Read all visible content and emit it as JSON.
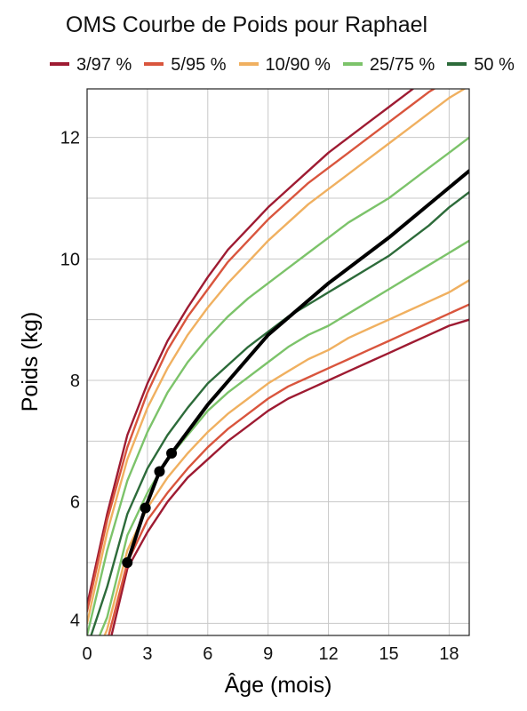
{
  "chart_data": {
    "type": "line",
    "title": "OMS Courbe de Poids pour Raphael",
    "xlabel": "Âge (mois)",
    "ylabel": "Poids (kg)",
    "xlim": [
      0,
      19
    ],
    "ylim": [
      3.8,
      12.8
    ],
    "x_ticks": [
      "0",
      "3",
      "6",
      "9",
      "12",
      "15",
      "18"
    ],
    "y_ticks": [
      "4",
      "6",
      "8",
      "10",
      "12"
    ],
    "grid": true,
    "legend_position": "top",
    "legend": [
      {
        "label": "3/97 %",
        "color": "#9e1b32"
      },
      {
        "label": "5/95 %",
        "color": "#d9553d"
      },
      {
        "label": "10/90 %",
        "color": "#f0b060"
      },
      {
        "label": "25/75 %",
        "color": "#7cc36a"
      },
      {
        "label": "50 %",
        "color": "#2d6b3a"
      }
    ],
    "percentile_x": [
      0,
      1,
      2,
      3,
      4,
      5,
      6,
      7,
      8,
      9,
      10,
      11,
      12,
      13,
      14,
      15,
      16,
      17,
      18,
      19
    ],
    "series": [
      {
        "name": "3/97 %",
        "color": "#9e1b32",
        "values": [
          2.9,
          3.5,
          4.9,
          5.5,
          6.0,
          6.4,
          6.7,
          7.0,
          7.25,
          7.5,
          7.7,
          7.85,
          8.0,
          8.15,
          8.3,
          8.45,
          8.6,
          8.75,
          8.9,
          9.0
        ]
      },
      {
        "name": "3/97 %",
        "color": "#9e1b32",
        "values": [
          4.3,
          5.8,
          7.1,
          7.95,
          8.65,
          9.2,
          9.7,
          10.15,
          10.5,
          10.85,
          11.15,
          11.45,
          11.75,
          12.0,
          12.25,
          12.5,
          12.75,
          13.0,
          13.2,
          13.4
        ]
      },
      {
        "name": "5/95 %",
        "color": "#d9553d",
        "values": [
          3.0,
          3.7,
          5.0,
          5.7,
          6.15,
          6.55,
          6.9,
          7.2,
          7.45,
          7.7,
          7.9,
          8.05,
          8.2,
          8.35,
          8.5,
          8.65,
          8.8,
          8.95,
          9.1,
          9.25
        ]
      },
      {
        "name": "5/95 %",
        "color": "#d9553d",
        "values": [
          4.2,
          5.7,
          6.9,
          7.8,
          8.5,
          9.05,
          9.5,
          9.95,
          10.3,
          10.65,
          10.95,
          11.25,
          11.5,
          11.75,
          12.0,
          12.25,
          12.5,
          12.75,
          12.95,
          13.15
        ]
      },
      {
        "name": "10/90 %",
        "color": "#f0b060",
        "values": [
          3.1,
          3.9,
          5.2,
          5.9,
          6.4,
          6.8,
          7.15,
          7.45,
          7.7,
          7.95,
          8.15,
          8.35,
          8.5,
          8.7,
          8.85,
          9.0,
          9.15,
          9.3,
          9.45,
          9.65
        ]
      },
      {
        "name": "10/90 %",
        "color": "#f0b060",
        "values": [
          4.0,
          5.5,
          6.7,
          7.55,
          8.2,
          8.75,
          9.2,
          9.6,
          9.95,
          10.3,
          10.6,
          10.9,
          11.15,
          11.4,
          11.65,
          11.9,
          12.15,
          12.4,
          12.65,
          12.85
        ]
      },
      {
        "name": "25/75 %",
        "color": "#7cc36a",
        "values": [
          3.3,
          4.1,
          5.45,
          6.15,
          6.7,
          7.1,
          7.5,
          7.8,
          8.05,
          8.3,
          8.55,
          8.75,
          8.9,
          9.1,
          9.3,
          9.5,
          9.7,
          9.9,
          10.1,
          10.3
        ]
      },
      {
        "name": "25/75 %",
        "color": "#7cc36a",
        "values": [
          3.8,
          5.2,
          6.35,
          7.15,
          7.8,
          8.3,
          8.7,
          9.05,
          9.35,
          9.6,
          9.85,
          10.1,
          10.35,
          10.6,
          10.8,
          11.0,
          11.25,
          11.5,
          11.75,
          12.0
        ]
      },
      {
        "name": "50 %",
        "color": "#2d6b3a",
        "values": [
          3.6,
          4.6,
          5.8,
          6.55,
          7.1,
          7.55,
          7.95,
          8.25,
          8.55,
          8.8,
          9.05,
          9.25,
          9.45,
          9.65,
          9.85,
          10.05,
          10.3,
          10.55,
          10.85,
          11.1
        ]
      },
      {
        "name": "Raphael",
        "color": "#000000",
        "x": [
          2.0,
          2.9,
          3.6,
          4.2,
          6,
          9,
          12,
          15,
          19
        ],
        "values": [
          5.0,
          5.9,
          6.5,
          6.8,
          7.6,
          8.75,
          9.6,
          10.35,
          11.45
        ]
      }
    ],
    "measurements": {
      "x": [
        2.0,
        2.9,
        3.6,
        4.2
      ],
      "values": [
        5.0,
        5.9,
        6.5,
        6.8
      ]
    }
  }
}
